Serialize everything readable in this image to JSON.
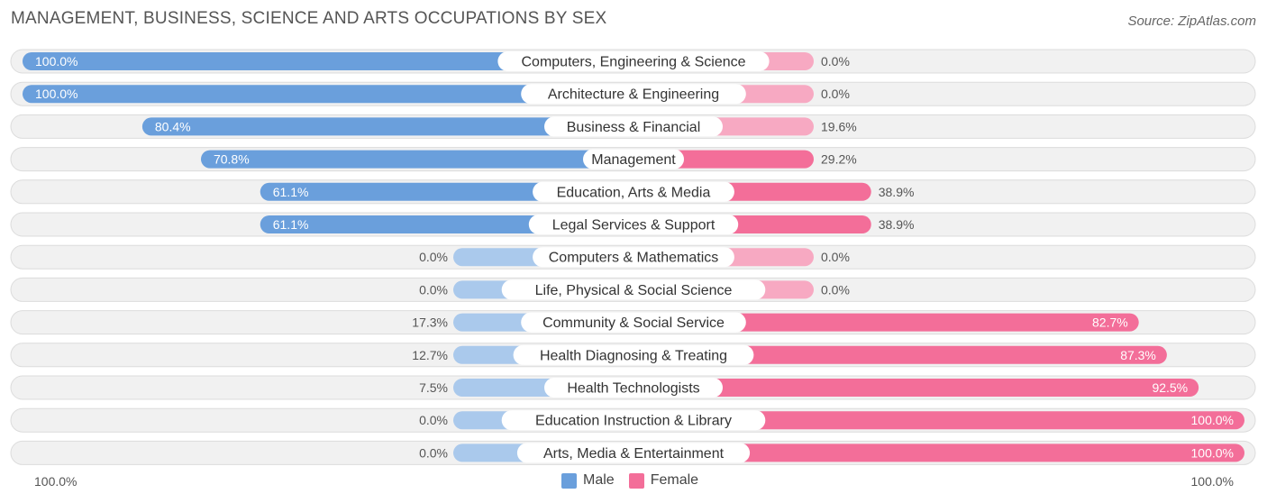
{
  "title": "MANAGEMENT, BUSINESS, SCIENCE AND ARTS OCCUPATIONS BY SEX",
  "source": "Source: ZipAtlas.com",
  "colors": {
    "male_strong": "#6a9fdc",
    "male_light": "#aac9ec",
    "female_strong": "#f36e99",
    "female_light": "#f7a9c2",
    "row_bg": "#f1f1f1",
    "row_border": "#dcdcdc"
  },
  "chart_data": {
    "type": "bar",
    "orientation": "horizontal-diverging",
    "title": "MANAGEMENT, BUSINESS, SCIENCE AND ARTS OCCUPATIONS BY SEX",
    "categories": [
      "Computers, Engineering & Science",
      "Architecture & Engineering",
      "Business & Financial",
      "Management",
      "Education, Arts & Media",
      "Legal Services & Support",
      "Computers & Mathematics",
      "Life, Physical & Social Science",
      "Community & Social Service",
      "Health Diagnosing & Treating",
      "Health Technologists",
      "Education Instruction & Library",
      "Arts, Media & Entertainment"
    ],
    "series": [
      {
        "name": "Male",
        "values": [
          100.0,
          100.0,
          80.4,
          70.8,
          61.1,
          61.1,
          0.0,
          0.0,
          17.3,
          12.7,
          7.5,
          0.0,
          0.0
        ]
      },
      {
        "name": "Female",
        "values": [
          0.0,
          0.0,
          19.6,
          29.2,
          38.9,
          38.9,
          0.0,
          0.0,
          82.7,
          87.3,
          92.5,
          100.0,
          100.0
        ]
      }
    ],
    "male_labels": [
      "100.0%",
      "100.0%",
      "80.4%",
      "70.8%",
      "61.1%",
      "61.1%",
      "0.0%",
      "0.0%",
      "17.3%",
      "12.7%",
      "7.5%",
      "0.0%",
      "0.0%"
    ],
    "female_labels": [
      "0.0%",
      "0.0%",
      "19.6%",
      "29.2%",
      "38.9%",
      "38.9%",
      "0.0%",
      "0.0%",
      "82.7%",
      "87.3%",
      "92.5%",
      "100.0%",
      "100.0%"
    ],
    "xlim": [
      -100,
      100
    ],
    "axis_left_label": "100.0%",
    "axis_right_label": "100.0%",
    "legend": [
      "Male",
      "Female"
    ],
    "legend_position": "bottom-center"
  }
}
